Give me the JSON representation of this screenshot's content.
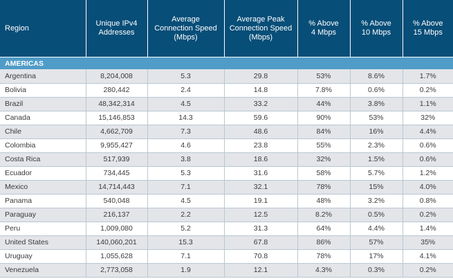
{
  "table": {
    "headers": [
      "Region",
      "Unique IPv4\nAddresses",
      "Average\nConnection Speed\n(Mbps)",
      "Average Peak\nConnection Speed\n(Mbps)",
      "% Above\n4 Mbps",
      "% Above\n10 Mbps",
      "% Above\n15 Mbps"
    ],
    "section_label": "AMERICAS",
    "rows": [
      [
        "Argentina",
        "8,204,008",
        "5.3",
        "29.8",
        "53%",
        "8.6%",
        "1.7%"
      ],
      [
        "Bolivia",
        "280,442",
        "2.4",
        "14.8",
        "7.8%",
        "0.6%",
        "0.2%"
      ],
      [
        "Brazil",
        "48,342,314",
        "4.5",
        "33.2",
        "44%",
        "3.8%",
        "1.1%"
      ],
      [
        "Canada",
        "15,146,853",
        "14.3",
        "59.6",
        "90%",
        "53%",
        "32%"
      ],
      [
        "Chile",
        "4,662,709",
        "7.3",
        "48.6",
        "84%",
        "16%",
        "4.4%"
      ],
      [
        "Colombia",
        "9,955,427",
        "4.6",
        "23.8",
        "55%",
        "2.3%",
        "0.6%"
      ],
      [
        "Costa Rica",
        "517,939",
        "3.8",
        "18.6",
        "32%",
        "1.5%",
        "0.6%"
      ],
      [
        "Ecuador",
        "734,445",
        "5.3",
        "31.6",
        "58%",
        "5.7%",
        "1.2%"
      ],
      [
        "Mexico",
        "14,714,443",
        "7.1",
        "32.1",
        "78%",
        "15%",
        "4.0%"
      ],
      [
        "Panama",
        "540,048",
        "4.5",
        "19.1",
        "48%",
        "3.2%",
        "0.8%"
      ],
      [
        "Paraguay",
        "216,137",
        "2.2",
        "12.5",
        "8.2%",
        "0.5%",
        "0.2%"
      ],
      [
        "Peru",
        "1,009,080",
        "5.2",
        "31.3",
        "64%",
        "4.4%",
        "1.4%"
      ],
      [
        "United States",
        "140,060,201",
        "15.3",
        "67.8",
        "86%",
        "57%",
        "35%"
      ],
      [
        "Uruguay",
        "1,055,628",
        "7.1",
        "70.8",
        "78%",
        "17%",
        "4.1%"
      ],
      [
        "Venezuela",
        "2,773,058",
        "1.9",
        "12.1",
        "4.3%",
        "0.3%",
        "0.2%"
      ]
    ]
  },
  "colors": {
    "header_bg": "#074e78",
    "section_bg": "#4f9cc8",
    "row_alt_bg": "#e3e5e9",
    "grid_line": "#b9c7d2"
  }
}
